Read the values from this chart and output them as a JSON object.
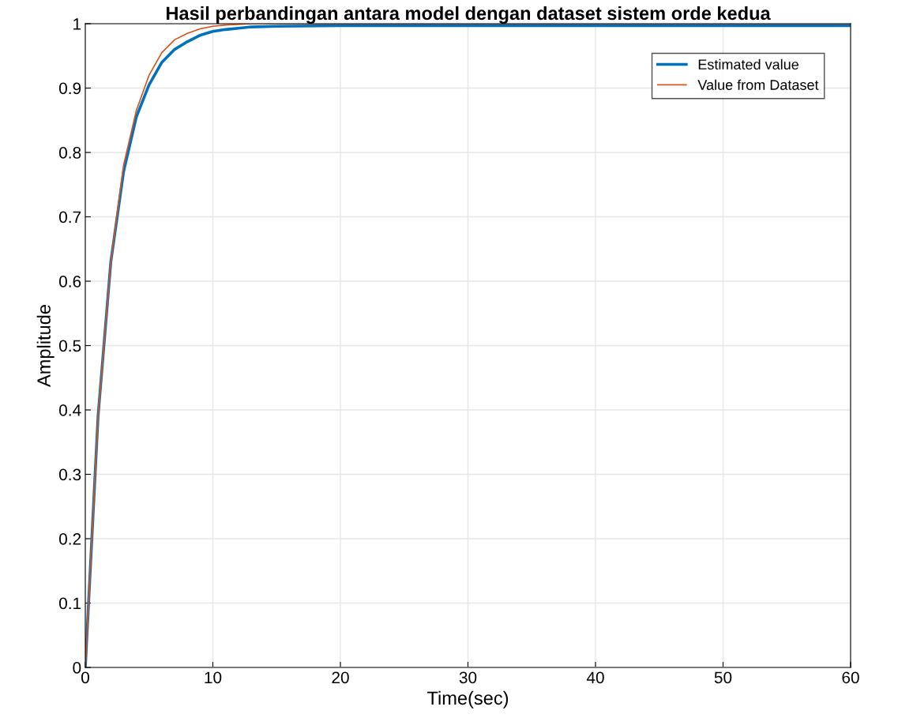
{
  "chart_data": {
    "type": "line",
    "title": "Hasil perbandingan antara model dengan dataset sistem orde kedua",
    "xlabel": "Time(sec)",
    "ylabel": "Amplitude",
    "xlim": [
      0,
      60
    ],
    "xticks": [
      0,
      10,
      20,
      30,
      40,
      50,
      60
    ],
    "ylim": [
      0,
      1
    ],
    "yticks": [
      0,
      0.1,
      0.2,
      0.3,
      0.4,
      0.5,
      0.6,
      0.7,
      0.8,
      0.9,
      1
    ],
    "grid": true,
    "legend": "top right",
    "series": [
      {
        "name": "Estimated value",
        "color": "#0072bd",
        "x": [
          0,
          1,
          2,
          3,
          4,
          5,
          6,
          7,
          8,
          9,
          10,
          11,
          12,
          13,
          15,
          20,
          60
        ],
        "values": [
          0,
          0.39,
          0.63,
          0.77,
          0.855,
          0.905,
          0.94,
          0.96,
          0.972,
          0.982,
          0.988,
          0.991,
          0.993,
          0.995,
          0.996,
          0.997,
          0.997
        ]
      },
      {
        "name": "Value from Dataset",
        "color": "#d95319",
        "x": [
          0,
          1,
          2,
          3,
          4,
          5,
          6,
          7,
          8,
          9,
          10,
          11,
          13,
          60
        ],
        "values": [
          0,
          0.39,
          0.63,
          0.78,
          0.865,
          0.92,
          0.955,
          0.975,
          0.985,
          0.992,
          0.996,
          0.998,
          1,
          1
        ]
      }
    ]
  }
}
